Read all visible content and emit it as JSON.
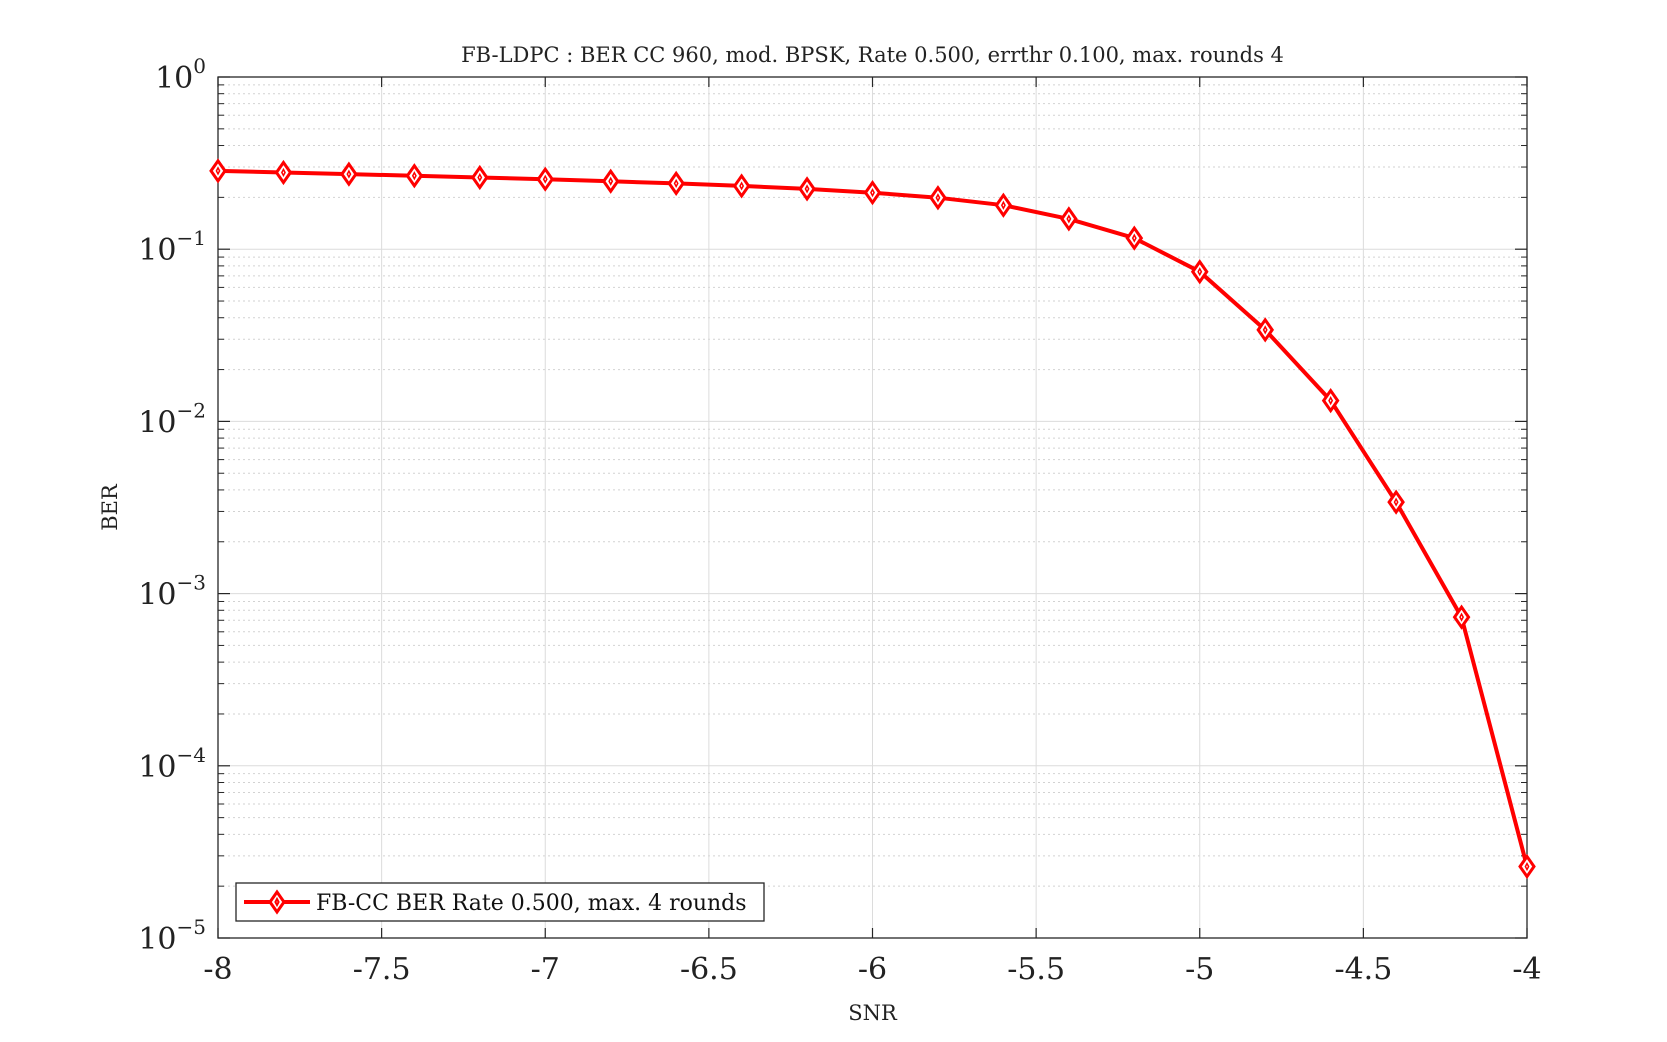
{
  "chart_data": {
    "type": "line",
    "title": "FB-LDPC : BER CC 960, mod. BPSK, Rate 0.500, errthr 0.100, max. rounds 4",
    "xlabel": "SNR",
    "ylabel": "BER",
    "xlim": [
      -8,
      -4
    ],
    "ylim": [
      1e-05,
      1
    ],
    "yscale": "log",
    "grid": true,
    "minor_grid": true,
    "legend_position": "bottom-left",
    "x_ticks": [
      "-8",
      "-7.5",
      "-7",
      "-6.5",
      "-6",
      "-5.5",
      "-5",
      "-4.5",
      "-4"
    ],
    "y_ticks": [
      {
        "base": "10",
        "exp": "0"
      },
      {
        "base": "10",
        "exp": "−1"
      },
      {
        "base": "10",
        "exp": "−2"
      },
      {
        "base": "10",
        "exp": "−3"
      },
      {
        "base": "10",
        "exp": "−4"
      },
      {
        "base": "10",
        "exp": "−5"
      }
    ],
    "x_tick_values": [
      -8,
      -7.5,
      -7,
      -6.5,
      -6,
      -5.5,
      -5,
      -4.5,
      -4
    ],
    "y_tick_values": [
      1,
      0.1,
      0.01,
      0.001,
      0.0001,
      1e-05
    ],
    "series": [
      {
        "name": "FB-CC BER Rate 0.500, max. 4 rounds",
        "color": "#ff0000",
        "marker": "diamond",
        "x": [
          -8,
          -7.8,
          -7.6,
          -7.4,
          -7.2,
          -7,
          -6.8,
          -6.6,
          -6.4,
          -6.2,
          -6,
          -5.8,
          -5.6,
          -5.4,
          -5.2,
          -5,
          -4.8,
          -4.6,
          -4.4,
          -4.2,
          -4
        ],
        "y": [
          0.285,
          0.279,
          0.273,
          0.267,
          0.261,
          0.255,
          0.248,
          0.241,
          0.233,
          0.224,
          0.213,
          0.199,
          0.18,
          0.15,
          0.116,
          0.074,
          0.034,
          0.0132,
          0.0034,
          0.00073,
          2.6e-05
        ]
      }
    ]
  }
}
